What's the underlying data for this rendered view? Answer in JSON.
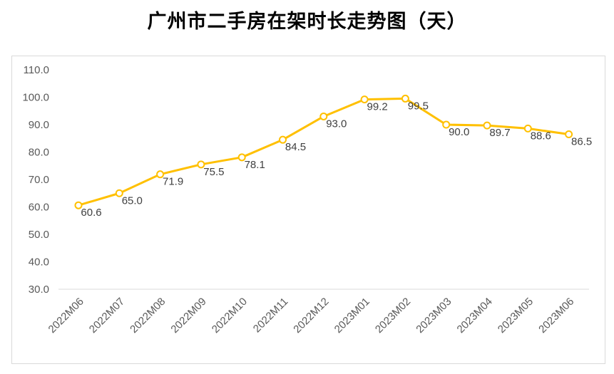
{
  "chart_data": {
    "type": "line",
    "title": "广州市二手房在架时长走势图（天）",
    "categories": [
      "2022M06",
      "2022M07",
      "2022M08",
      "2022M09",
      "2022M10",
      "2022M11",
      "2022M12",
      "2023M01",
      "2023M02",
      "2023M03",
      "2023M04",
      "2023M05",
      "2023M06"
    ],
    "series": [
      {
        "values": [
          60.6,
          65.0,
          71.9,
          75.5,
          78.1,
          84.5,
          93.0,
          99.2,
          99.5,
          90.0,
          89.7,
          88.6,
          86.5
        ]
      }
    ],
    "ylim": [
      30,
      110
    ],
    "yticks": [
      "30.0",
      "40.0",
      "50.0",
      "60.0",
      "70.0",
      "80.0",
      "90.0",
      "100.0",
      "110.0"
    ],
    "data_labels": [
      "60.6",
      "65.0",
      "71.9",
      "75.5",
      "78.1",
      "84.5",
      "93.0",
      "99.2",
      "99.5",
      "90.0",
      "89.7",
      "88.6",
      "86.5"
    ],
    "grid": false,
    "legend": "none",
    "colors": {
      "line": "#ffc000",
      "marker_fill": "#ffffff",
      "axis": "#d9d9d9"
    }
  }
}
